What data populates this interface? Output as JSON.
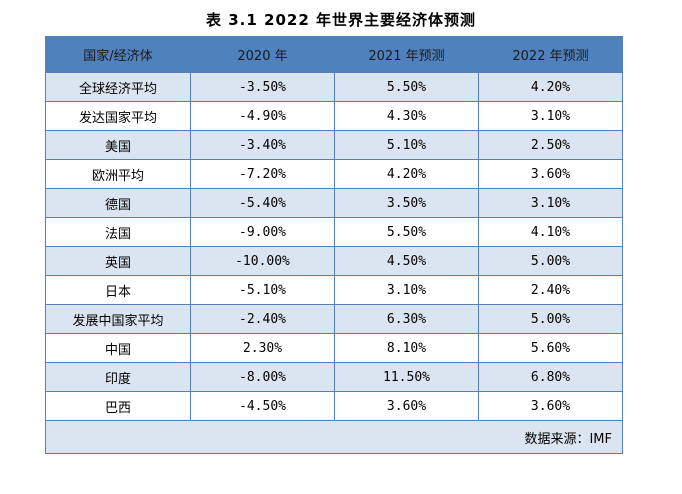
{
  "caption": "表 3.1   2022 年世界主要经济体预测",
  "table": {
    "headers": [
      "国家/经济体",
      "2020 年",
      "2021 年预测",
      "2022 年预测"
    ],
    "rows": [
      [
        "全球经济平均",
        "-3.50%",
        "5.50%",
        "4.20%"
      ],
      [
        "发达国家平均",
        "-4.90%",
        "4.30%",
        "3.10%"
      ],
      [
        "美国",
        "-3.40%",
        "5.10%",
        "2.50%"
      ],
      [
        "欧洲平均",
        "-7.20%",
        "4.20%",
        "3.60%"
      ],
      [
        "德国",
        "-5.40%",
        "3.50%",
        "3.10%"
      ],
      [
        "法国",
        "-9.00%",
        "5.50%",
        "4.10%"
      ],
      [
        "英国",
        "-10.00%",
        "4.50%",
        "5.00%"
      ],
      [
        "日本",
        "-5.10%",
        "3.10%",
        "2.40%"
      ],
      [
        "发展中国家平均",
        "-2.40%",
        "6.30%",
        "5.00%"
      ],
      [
        "中国",
        "2.30%",
        "8.10%",
        "5.60%"
      ],
      [
        "印度",
        "-8.00%",
        "11.50%",
        "6.80%"
      ],
      [
        "巴西",
        "-4.50%",
        "3.60%",
        "3.60%"
      ]
    ],
    "source": "数据来源：IMF"
  },
  "colors": {
    "header_bg": "#4f81bd",
    "band_bg": "#dbe5f1",
    "border": "#4f81bd"
  }
}
